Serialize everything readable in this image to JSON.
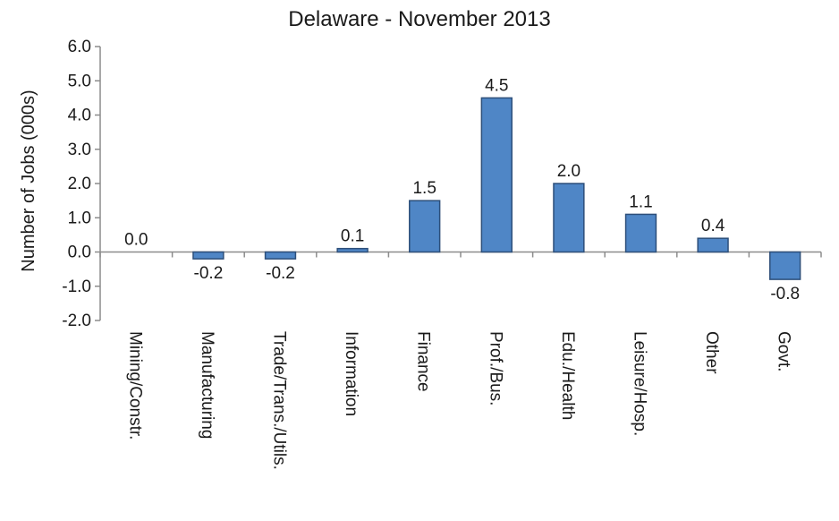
{
  "chart_data": {
    "type": "bar",
    "title": "Delaware - November 2013",
    "ylabel": "Number of Jobs (000s)",
    "xlabel": "",
    "categories": [
      "Mining/Constr.",
      "Manufacturing",
      "Trade/Trans./Utils.",
      "Information",
      "Finance",
      "Prof./Bus.",
      "Edu./Health",
      "Leisure/Hosp.",
      "Other",
      "Govt."
    ],
    "values": [
      0.0,
      -0.2,
      -0.2,
      0.1,
      1.5,
      4.5,
      2.0,
      1.1,
      0.4,
      -0.8
    ],
    "data_labels": [
      "0.0",
      "-0.2",
      "-0.2",
      "0.1",
      "1.5",
      "4.5",
      "2.0",
      "1.1",
      "0.4",
      "-0.8"
    ],
    "ylim": [
      -2.0,
      6.0
    ],
    "yticks": [
      "6.0",
      "5.0",
      "4.0",
      "3.0",
      "2.0",
      "1.0",
      "0.0",
      "-1.0",
      "-2.0"
    ],
    "grid": false,
    "legend": "none",
    "colors": {
      "bar_fill": "#4f86c6",
      "bar_edge": "#2d4f7a",
      "axis": "#8c8c8c"
    }
  }
}
